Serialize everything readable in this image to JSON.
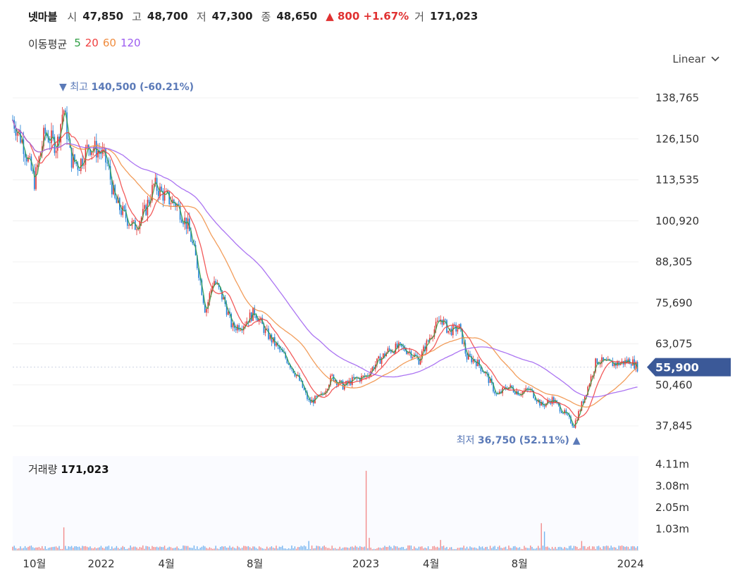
{
  "header": {
    "stock_name": "넷마블",
    "open_label": "시",
    "open_value": "47,850",
    "high_label": "고",
    "high_value": "48,700",
    "low_label": "저",
    "low_value": "47,300",
    "close_label": "종",
    "close_value": "48,650",
    "change": "800",
    "change_pct": "+1.67%",
    "volume_label": "거",
    "volume_value": "171,023"
  },
  "moving_average": {
    "label": "이동평균",
    "periods": [
      {
        "period": "5",
        "color": "#2f9e44"
      },
      {
        "period": "20",
        "color": "#f03e3e"
      },
      {
        "period": "60",
        "color": "#f08c3e"
      },
      {
        "period": "120",
        "color": "#9c5cf0"
      }
    ]
  },
  "scale_selector": {
    "label": "Linear"
  },
  "colors": {
    "up": "#e03131",
    "down": "#1c7ed6",
    "current_price_bg": "#3b5998",
    "annotation": "#5b7ab8"
  },
  "chart_data": {
    "type": "candlestick",
    "price_axis": {
      "ticks": [
        "138,765",
        "126,150",
        "113,535",
        "100,920",
        "88,305",
        "75,690",
        "63,075",
        "50,460",
        "37,845"
      ],
      "range": [
        34000,
        142000
      ]
    },
    "current_price": "55,900",
    "high_annotation": {
      "label": "최고",
      "value": "140,500",
      "pct": "(-60.21%)",
      "date": "2021-11"
    },
    "low_annotation": {
      "label": "최저",
      "value": "36,750",
      "pct": "(52.11%)",
      "date": "2023-10"
    },
    "x_axis": {
      "ticks": [
        "10월",
        "2022",
        "4월",
        "8월",
        "2023",
        "4월",
        "8월",
        "2024"
      ],
      "range": [
        "2021-09",
        "2024-01"
      ]
    },
    "price_points": [
      [
        "2021-09-01",
        132000
      ],
      [
        "2021-09-15",
        125000
      ],
      [
        "2021-10-01",
        113000
      ],
      [
        "2021-10-15",
        128000
      ],
      [
        "2021-11-01",
        124000
      ],
      [
        "2021-11-10",
        136000
      ],
      [
        "2021-11-20",
        120000
      ],
      [
        "2021-12-01",
        118000
      ],
      [
        "2021-12-15",
        124000
      ],
      [
        "2022-01-01",
        122000
      ],
      [
        "2022-01-10",
        118000
      ],
      [
        "2022-01-20",
        107000
      ],
      [
        "2022-02-01",
        103000
      ],
      [
        "2022-02-15",
        99000
      ],
      [
        "2022-03-01",
        103000
      ],
      [
        "2022-03-15",
        112000
      ],
      [
        "2022-04-01",
        108000
      ],
      [
        "2022-04-15",
        106000
      ],
      [
        "2022-05-01",
        99000
      ],
      [
        "2022-05-15",
        86000
      ],
      [
        "2022-05-25",
        73000
      ],
      [
        "2022-06-05",
        83000
      ],
      [
        "2022-06-20",
        76000
      ],
      [
        "2022-07-01",
        68000
      ],
      [
        "2022-07-15",
        69000
      ],
      [
        "2022-08-01",
        73000
      ],
      [
        "2022-08-15",
        67000
      ],
      [
        "2022-09-01",
        62000
      ],
      [
        "2022-09-15",
        58000
      ],
      [
        "2022-10-01",
        52000
      ],
      [
        "2022-10-15",
        45000
      ],
      [
        "2022-11-01",
        47000
      ],
      [
        "2022-11-15",
        53000
      ],
      [
        "2022-12-01",
        50000
      ],
      [
        "2022-12-15",
        52000
      ],
      [
        "2023-01-01",
        53000
      ],
      [
        "2023-01-15",
        57000
      ],
      [
        "2023-02-01",
        61000
      ],
      [
        "2023-02-15",
        62000
      ],
      [
        "2023-03-01",
        61000
      ],
      [
        "2023-03-15",
        58000
      ],
      [
        "2023-04-01",
        66000
      ],
      [
        "2023-04-15",
        71000
      ],
      [
        "2023-04-25",
        67000
      ],
      [
        "2023-05-10",
        68000
      ],
      [
        "2023-05-20",
        59000
      ],
      [
        "2023-06-01",
        58000
      ],
      [
        "2023-06-15",
        54000
      ],
      [
        "2023-07-01",
        47000
      ],
      [
        "2023-07-15",
        50000
      ],
      [
        "2023-08-01",
        48000
      ],
      [
        "2023-08-15",
        49000
      ],
      [
        "2023-09-01",
        44000
      ],
      [
        "2023-09-15",
        46000
      ],
      [
        "2023-10-01",
        42000
      ],
      [
        "2023-10-15",
        38000
      ],
      [
        "2023-10-25",
        44000
      ],
      [
        "2023-11-05",
        51000
      ],
      [
        "2023-11-15",
        58000
      ],
      [
        "2023-12-01",
        57000
      ],
      [
        "2023-12-15",
        57000
      ],
      [
        "2024-01-01",
        58000
      ],
      [
        "2024-01-10",
        56000
      ]
    ],
    "volume_panel": {
      "title": "거래량",
      "value": "171,023",
      "ticks": [
        "4.11m",
        "3.08m",
        "2.05m",
        "1.03m"
      ],
      "range": [
        0,
        4500000
      ],
      "spikes": [
        [
          "2021-11-10",
          1100000
        ],
        [
          "2022-10-15",
          450000
        ],
        [
          "2023-01-01",
          3800000
        ],
        [
          "2023-01-05",
          600000
        ],
        [
          "2023-04-15",
          500000
        ],
        [
          "2023-09-01",
          1300000
        ],
        [
          "2023-09-05",
          900000
        ],
        [
          "2023-10-25",
          450000
        ]
      ]
    }
  }
}
